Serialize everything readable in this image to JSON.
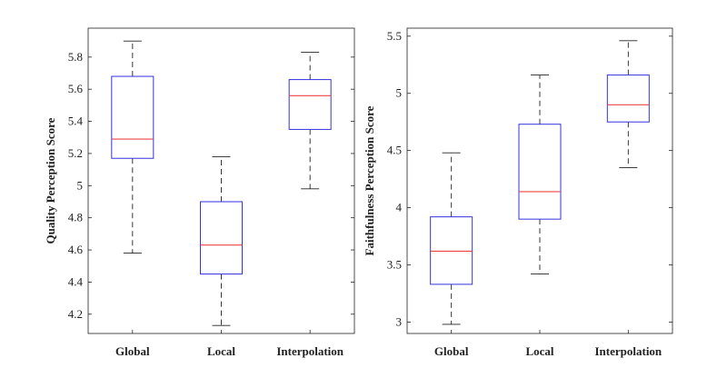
{
  "chart_data": [
    {
      "type": "box",
      "title": "",
      "xlabel": "",
      "ylabel": "Quality Perception Score",
      "ylim": [
        4.08,
        5.98
      ],
      "yticks": [
        4.2,
        4.4,
        4.6,
        4.8,
        5,
        5.2,
        5.4,
        5.6,
        5.8
      ],
      "ytick_labels": [
        "4.2",
        "4.4",
        "4.6",
        "4.8",
        "5",
        "5.2",
        "5.4",
        "5.6",
        "5.8"
      ],
      "categories": [
        "Global",
        "Local",
        "Interpolation"
      ],
      "boxes": [
        {
          "min": 4.58,
          "q1": 5.17,
          "median": 5.29,
          "q3": 5.68,
          "max": 5.9
        },
        {
          "min": 4.13,
          "q1": 4.45,
          "median": 4.63,
          "q3": 4.9,
          "max": 5.18
        },
        {
          "min": 4.98,
          "q1": 5.35,
          "median": 5.56,
          "q3": 5.66,
          "max": 5.83
        }
      ]
    },
    {
      "type": "box",
      "title": "",
      "xlabel": "",
      "ylabel": "Faithfulness Perception Score",
      "ylim": [
        2.9,
        5.57
      ],
      "yticks": [
        3,
        3.5,
        4,
        4.5,
        5,
        5.5
      ],
      "ytick_labels": [
        "3",
        "3.5",
        "4",
        "4.5",
        "5",
        "5.5"
      ],
      "categories": [
        "Global",
        "Local",
        "Interpolation"
      ],
      "boxes": [
        {
          "min": 2.98,
          "q1": 3.33,
          "median": 3.62,
          "q3": 3.92,
          "max": 4.48
        },
        {
          "min": 3.42,
          "q1": 3.9,
          "median": 4.14,
          "q3": 4.73,
          "max": 5.16
        },
        {
          "min": 4.35,
          "q1": 4.75,
          "median": 4.9,
          "q3": 5.16,
          "max": 5.46
        }
      ]
    }
  ],
  "colors": {
    "box": "#3333dd",
    "median": "#ee4444",
    "whisker": "#222222",
    "axis": "#222222"
  }
}
